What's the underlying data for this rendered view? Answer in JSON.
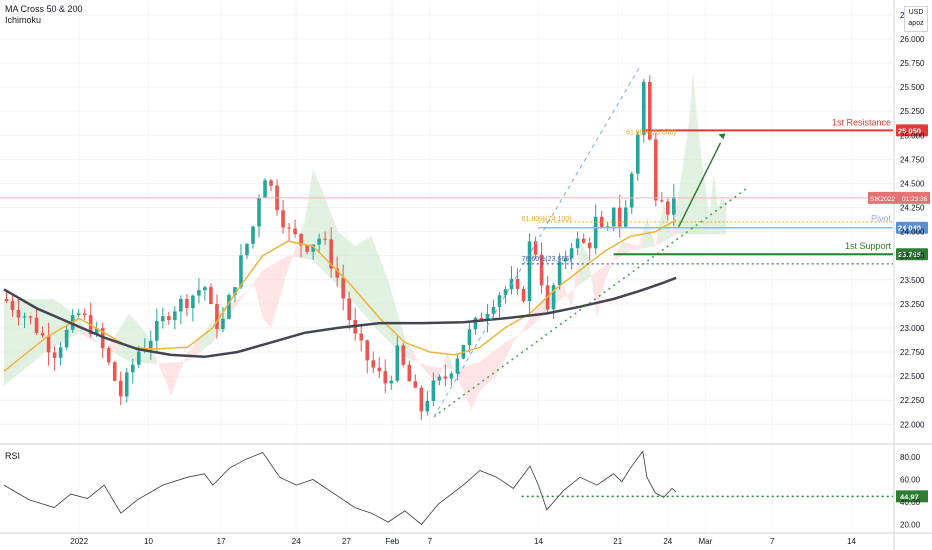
{
  "legend": {
    "ma": "MA Cross 50 & 200",
    "ichimoku": "Ichimoku"
  },
  "currency_box": {
    "line1": "USD",
    "line2": "apoz"
  },
  "rsi_label": "RSI",
  "colors": {
    "bull": "#26a69a",
    "bear": "#ef5350",
    "ma50": "#f0b33a",
    "ma200": "#434651",
    "cloud_green": "#c8e6c9",
    "cloud_red": "#ffcdd2",
    "resistance": "#e53935",
    "support": "#2e7d32",
    "pivot": "#5b8fd6",
    "fib": "#e6a431",
    "trend": "#43a047"
  },
  "annotations": {
    "resistance_label": "1st Resistance",
    "resistance_value": "25.050",
    "support_label": "1st Support",
    "support_value": "23.765",
    "pivot_label": "Pivot",
    "pivot_value": "24.040",
    "fib_618_upper": "61.80%(25.040)",
    "fib_618_lower": "61.80%(24.100)",
    "fib_786": "78.60%(23.665)",
    "symbol": "SIK2022",
    "countdown": "01:23:36",
    "rsi_value": "44.97"
  },
  "chart_data": {
    "type": "candlestick",
    "title": "",
    "price_axis_ticks": [
      "26.250",
      "26.000",
      "25.750",
      "25.500",
      "25.250",
      "25.000",
      "24.750",
      "24.500",
      "24.250",
      "24.000",
      "23.750",
      "23.500",
      "23.250",
      "23.000",
      "22.750",
      "22.500",
      "22.250",
      "22.000"
    ],
    "price_ylim": [
      21.92,
      26.3
    ],
    "rsi_axis_ticks": [
      "80.00",
      "60.00",
      "40.00",
      "20.00"
    ],
    "rsi_ylim": [
      15,
      88
    ],
    "time_axis_ticks": [
      "2022",
      "10",
      "17",
      "24",
      "27",
      "Feb",
      "7",
      "14",
      "21",
      "24",
      "Mar",
      "7",
      "14"
    ],
    "close_path": [
      [
        0,
        23.3
      ],
      [
        3,
        23.1
      ],
      [
        6,
        22.75
      ],
      [
        9,
        23.15
      ],
      [
        11,
        22.95
      ],
      [
        14,
        22.3
      ],
      [
        16,
        22.75
      ],
      [
        18,
        22.95
      ],
      [
        20,
        23.2
      ],
      [
        22,
        23.3
      ],
      [
        24,
        23.45
      ],
      [
        25,
        23.1
      ],
      [
        26,
        23.0
      ],
      [
        28,
        23.6
      ],
      [
        30,
        24.1
      ],
      [
        31,
        24.65
      ],
      [
        32,
        24.45
      ],
      [
        34,
        24.0
      ],
      [
        36,
        23.85
      ],
      [
        38,
        23.95
      ],
      [
        40,
        23.5
      ],
      [
        42,
        22.9
      ],
      [
        44,
        22.6
      ],
      [
        46,
        22.4
      ],
      [
        47,
        22.75
      ],
      [
        48,
        22.55
      ],
      [
        50,
        22.15
      ],
      [
        51,
        22.35
      ],
      [
        53,
        22.5
      ],
      [
        55,
        22.85
      ],
      [
        57,
        23.1
      ],
      [
        59,
        23.35
      ],
      [
        61,
        23.45
      ],
      [
        62,
        23.2
      ],
      [
        63,
        23.9
      ],
      [
        64,
        23.75
      ],
      [
        65,
        23.1
      ],
      [
        66,
        23.5
      ],
      [
        68,
        23.9
      ],
      [
        70,
        23.85
      ],
      [
        71,
        24.15
      ],
      [
        72,
        23.85
      ],
      [
        73,
        24.3
      ],
      [
        74,
        24.0
      ],
      [
        75,
        24.5
      ],
      [
        76,
        25.1
      ],
      [
        76.5,
        25.65
      ],
      [
        77,
        25.2
      ],
      [
        77.5,
        24.8
      ],
      [
        78,
        24.45
      ],
      [
        78.5,
        24.15
      ],
      [
        79,
        24.6
      ],
      [
        79.5,
        24.25
      ],
      [
        80,
        24.35
      ],
      [
        80.5,
        24.3
      ]
    ],
    "ma50_path": [
      [
        0,
        22.55
      ],
      [
        5,
        22.9
      ],
      [
        9,
        23.1
      ],
      [
        12,
        22.95
      ],
      [
        15,
        22.8
      ],
      [
        18,
        22.78
      ],
      [
        22,
        22.8
      ],
      [
        25,
        23.0
      ],
      [
        28,
        23.4
      ],
      [
        31,
        23.75
      ],
      [
        34,
        23.9
      ],
      [
        37,
        23.85
      ],
      [
        41,
        23.5
      ],
      [
        45,
        23.1
      ],
      [
        48,
        22.85
      ],
      [
        51,
        22.75
      ],
      [
        54,
        22.72
      ],
      [
        57,
        22.8
      ],
      [
        60,
        23.0
      ],
      [
        63,
        23.15
      ],
      [
        66,
        23.4
      ],
      [
        69,
        23.6
      ],
      [
        72,
        23.8
      ],
      [
        75,
        23.95
      ],
      [
        78,
        24.0
      ],
      [
        80.5,
        24.12
      ]
    ],
    "ma200_path": [
      [
        0,
        23.4
      ],
      [
        4,
        23.2
      ],
      [
        8,
        23.05
      ],
      [
        12,
        22.9
      ],
      [
        16,
        22.78
      ],
      [
        20,
        22.72
      ],
      [
        24,
        22.7
      ],
      [
        28,
        22.75
      ],
      [
        32,
        22.85
      ],
      [
        36,
        22.95
      ],
      [
        40,
        23.0
      ],
      [
        45,
        23.05
      ],
      [
        50,
        23.05
      ],
      [
        55,
        23.06
      ],
      [
        60,
        23.1
      ],
      [
        65,
        23.15
      ],
      [
        69,
        23.22
      ],
      [
        73,
        23.3
      ],
      [
        76,
        23.38
      ],
      [
        79,
        23.47
      ],
      [
        80.5,
        23.52
      ]
    ],
    "rsi_path": [
      [
        0,
        55
      ],
      [
        3,
        42
      ],
      [
        6,
        35
      ],
      [
        8,
        47
      ],
      [
        10,
        43
      ],
      [
        12,
        55
      ],
      [
        14,
        30
      ],
      [
        16,
        42
      ],
      [
        19,
        55
      ],
      [
        22,
        62
      ],
      [
        24,
        65
      ],
      [
        25,
        55
      ],
      [
        27,
        70
      ],
      [
        29,
        78
      ],
      [
        31,
        84
      ],
      [
        33,
        62
      ],
      [
        35,
        55
      ],
      [
        37,
        60
      ],
      [
        40,
        45
      ],
      [
        42,
        35
      ],
      [
        44,
        30
      ],
      [
        46,
        22
      ],
      [
        48,
        32
      ],
      [
        50,
        20
      ],
      [
        52,
        38
      ],
      [
        55,
        55
      ],
      [
        57,
        68
      ],
      [
        59,
        62
      ],
      [
        61,
        52
      ],
      [
        63,
        72
      ],
      [
        64,
        55
      ],
      [
        65,
        33
      ],
      [
        67,
        50
      ],
      [
        69,
        62
      ],
      [
        71,
        55
      ],
      [
        73,
        65
      ],
      [
        74,
        58
      ],
      [
        75,
        70
      ],
      [
        76,
        80
      ],
      [
        76.5,
        85
      ],
      [
        77,
        62
      ],
      [
        78,
        48
      ],
      [
        79,
        44
      ],
      [
        80,
        52
      ],
      [
        80.5,
        49
      ]
    ],
    "levels": {
      "resistance": 25.05,
      "pivot": 24.04,
      "support": 23.765,
      "fib_786": 23.665,
      "fib_618_lower": 24.1
    },
    "rsi_level": 44.97
  }
}
